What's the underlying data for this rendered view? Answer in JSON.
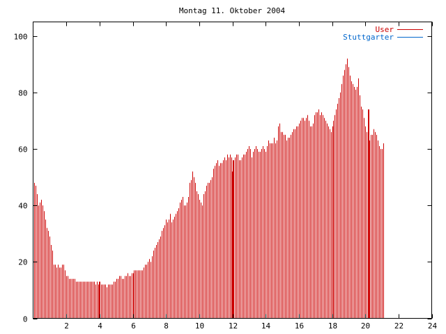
{
  "chart_data": {
    "type": "bar",
    "title": "Montag 11. Oktober 2004",
    "xlabel": "",
    "ylabel": "",
    "xlim": [
      0,
      24
    ],
    "ylim": [
      0,
      105
    ],
    "x_ticks": [
      "2",
      "4",
      "6",
      "8",
      "10",
      "12",
      "14",
      "16",
      "18",
      "20",
      "22",
      "24"
    ],
    "y_ticks": [
      "0",
      "20",
      "40",
      "60",
      "80",
      "100"
    ],
    "grid": false,
    "legend_position": "top-right",
    "bar_interval_minutes": 5,
    "series": [
      {
        "name": "User",
        "color": "#cc0000",
        "values": [
          48,
          47,
          44,
          40,
          41,
          42,
          40,
          38,
          35,
          32,
          31,
          29,
          26,
          24,
          19,
          19,
          18,
          19,
          18,
          18,
          19,
          19,
          17,
          15,
          15,
          14,
          14,
          14,
          14,
          14,
          13,
          13,
          13,
          13,
          13,
          13,
          13,
          13,
          13,
          13,
          13,
          13,
          13,
          13,
          12,
          13,
          12,
          12,
          12,
          12,
          12,
          12,
          11,
          12,
          12,
          12,
          12,
          13,
          13,
          14,
          14,
          15,
          15,
          14,
          14,
          15,
          15,
          16,
          15,
          15,
          16,
          16,
          17,
          17,
          17,
          17,
          17,
          17,
          17,
          18,
          19,
          19,
          20,
          21,
          20,
          22,
          24,
          25,
          26,
          27,
          28,
          29,
          31,
          32,
          33,
          35,
          34,
          35,
          37,
          34,
          35,
          36,
          37,
          38,
          39,
          41,
          42,
          43,
          40,
          40,
          41,
          43,
          48,
          49,
          52,
          50,
          48,
          45,
          44,
          42,
          41,
          40,
          44,
          45,
          47,
          48,
          48,
          49,
          50,
          53,
          54,
          55,
          56,
          54,
          55,
          55,
          56,
          57,
          56,
          58,
          57,
          58,
          57,
          56,
          56,
          57,
          58,
          58,
          56,
          56,
          57,
          58,
          58,
          59,
          60,
          61,
          60,
          57,
          59,
          60,
          61,
          60,
          59,
          59,
          60,
          61,
          60,
          59,
          61,
          63,
          62,
          62,
          62,
          64,
          62,
          63,
          68,
          69,
          66,
          66,
          65,
          65,
          63,
          64,
          64,
          65,
          66,
          67,
          67,
          68,
          68,
          69,
          70,
          71,
          71,
          70,
          71,
          72,
          70,
          68,
          68,
          69,
          72,
          73,
          73,
          74,
          72,
          73,
          72,
          71,
          70,
          69,
          68,
          67,
          66,
          68,
          70,
          72,
          74,
          76,
          78,
          80,
          83,
          86,
          88,
          90,
          92,
          89,
          86,
          84,
          83,
          82,
          81,
          82,
          85,
          79,
          75,
          74,
          71,
          68,
          66,
          64,
          63,
          65,
          65,
          67,
          66,
          65,
          63,
          61,
          60,
          60,
          62
        ]
      },
      {
        "name": "Stuttgarter",
        "color": "#0066cc",
        "values": []
      }
    ],
    "highlight_bars": [
      {
        "x": 4.0,
        "value": 13
      },
      {
        "x": 12.0,
        "value": 52
      },
      {
        "x": 20.2,
        "value": 74
      }
    ]
  }
}
